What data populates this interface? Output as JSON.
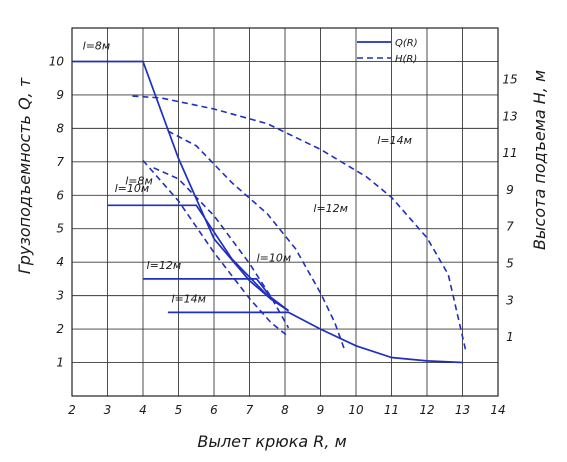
{
  "chart_data": {
    "type": "line",
    "xlabel": "Вылет крюка R, м",
    "ylabel_left": "Грузоподъемность Q, т",
    "ylabel_right": "Высота подъема H, м",
    "xlim": [
      2,
      14
    ],
    "ylim_left": [
      0,
      11
    ],
    "ylim_right": [
      -2.2,
      17.8
    ],
    "x_ticks": [
      2,
      3,
      4,
      5,
      6,
      7,
      8,
      9,
      10,
      11,
      12,
      13,
      14
    ],
    "y_ticks_left": [
      1,
      2,
      3,
      4,
      5,
      6,
      7,
      8,
      9,
      10
    ],
    "y_ticks_right": [
      1,
      3,
      5,
      7,
      9,
      11,
      13,
      15
    ],
    "grid": true,
    "legend_position": "top-right",
    "legend": [
      {
        "label": "Q(R)",
        "style": "solid"
      },
      {
        "label": "H(R)",
        "style": "dashed"
      }
    ],
    "series": [
      {
        "name": "Q(R)",
        "axis": "left",
        "label": "l=8м",
        "label_at": [
          2.3,
          10.35
        ],
        "points": [
          [
            2.0,
            10.0
          ],
          [
            4.0,
            10.0
          ],
          [
            5.0,
            7.1
          ],
          [
            6.0,
            4.7
          ],
          [
            7.0,
            3.45
          ],
          [
            7.6,
            2.9
          ],
          [
            8.1,
            2.55
          ]
        ]
      },
      {
        "name": "Q(R)",
        "axis": "left",
        "label": "l=10м",
        "label_at": [
          3.2,
          6.1
        ],
        "points": [
          [
            3.0,
            5.7
          ],
          [
            5.5,
            5.7
          ],
          [
            6.5,
            4.1
          ],
          [
            7.6,
            2.9
          ],
          [
            8.1,
            2.55
          ]
        ]
      },
      {
        "name": "Q(R)",
        "axis": "left",
        "label": "l=12м",
        "label_at": [
          4.1,
          3.8
        ],
        "points": [
          [
            4.0,
            3.5
          ],
          [
            7.2,
            3.5
          ],
          [
            7.6,
            2.95
          ],
          [
            8.1,
            2.55
          ]
        ]
      },
      {
        "name": "Q(R)",
        "axis": "left",
        "label": "l=14м",
        "label_at": [
          4.8,
          2.8
        ],
        "points": [
          [
            4.7,
            2.5
          ],
          [
            8.1,
            2.5
          ],
          [
            9.0,
            2.0
          ],
          [
            10.0,
            1.5
          ],
          [
            11.0,
            1.15
          ],
          [
            12.0,
            1.05
          ],
          [
            13.0,
            1.0
          ]
        ]
      },
      {
        "name": "H(R)",
        "axis": "right",
        "label": "l=8м",
        "label_at": [
          3.5,
          9.3
        ],
        "points": [
          [
            4.0,
            10.6
          ],
          [
            5.0,
            8.4
          ],
          [
            6.0,
            5.6
          ],
          [
            7.0,
            3.1
          ],
          [
            7.6,
            1.8
          ],
          [
            8.05,
            1.1
          ]
        ]
      },
      {
        "name": "H(R)",
        "axis": "right",
        "label": "l=10м",
        "label_at": [
          7.2,
          5.1
        ],
        "points": [
          [
            4.3,
            10.2
          ],
          [
            5.0,
            9.6
          ],
          [
            6.0,
            7.6
          ],
          [
            7.0,
            5.0
          ],
          [
            7.6,
            3.2
          ],
          [
            8.1,
            1.5
          ]
        ]
      },
      {
        "name": "H(R)",
        "axis": "right",
        "label": "l=12м",
        "label_at": [
          8.8,
          7.8
        ],
        "points": [
          [
            4.7,
            12.2
          ],
          [
            5.5,
            11.4
          ],
          [
            6.5,
            9.4
          ],
          [
            7.5,
            7.7
          ],
          [
            8.3,
            5.8
          ],
          [
            9.0,
            3.4
          ],
          [
            9.4,
            1.8
          ],
          [
            9.7,
            0.2
          ]
        ]
      },
      {
        "name": "H(R)",
        "axis": "right",
        "label": "l=14м",
        "label_at": [
          10.6,
          11.5
        ],
        "points": [
          [
            3.7,
            14.1
          ],
          [
            4.5,
            14.0
          ],
          [
            6.0,
            13.4
          ],
          [
            7.5,
            12.6
          ],
          [
            9.0,
            11.2
          ],
          [
            10.3,
            9.7
          ],
          [
            11.0,
            8.6
          ],
          [
            12.0,
            6.4
          ],
          [
            12.6,
            4.4
          ],
          [
            13.1,
            0.2
          ]
        ]
      }
    ]
  }
}
